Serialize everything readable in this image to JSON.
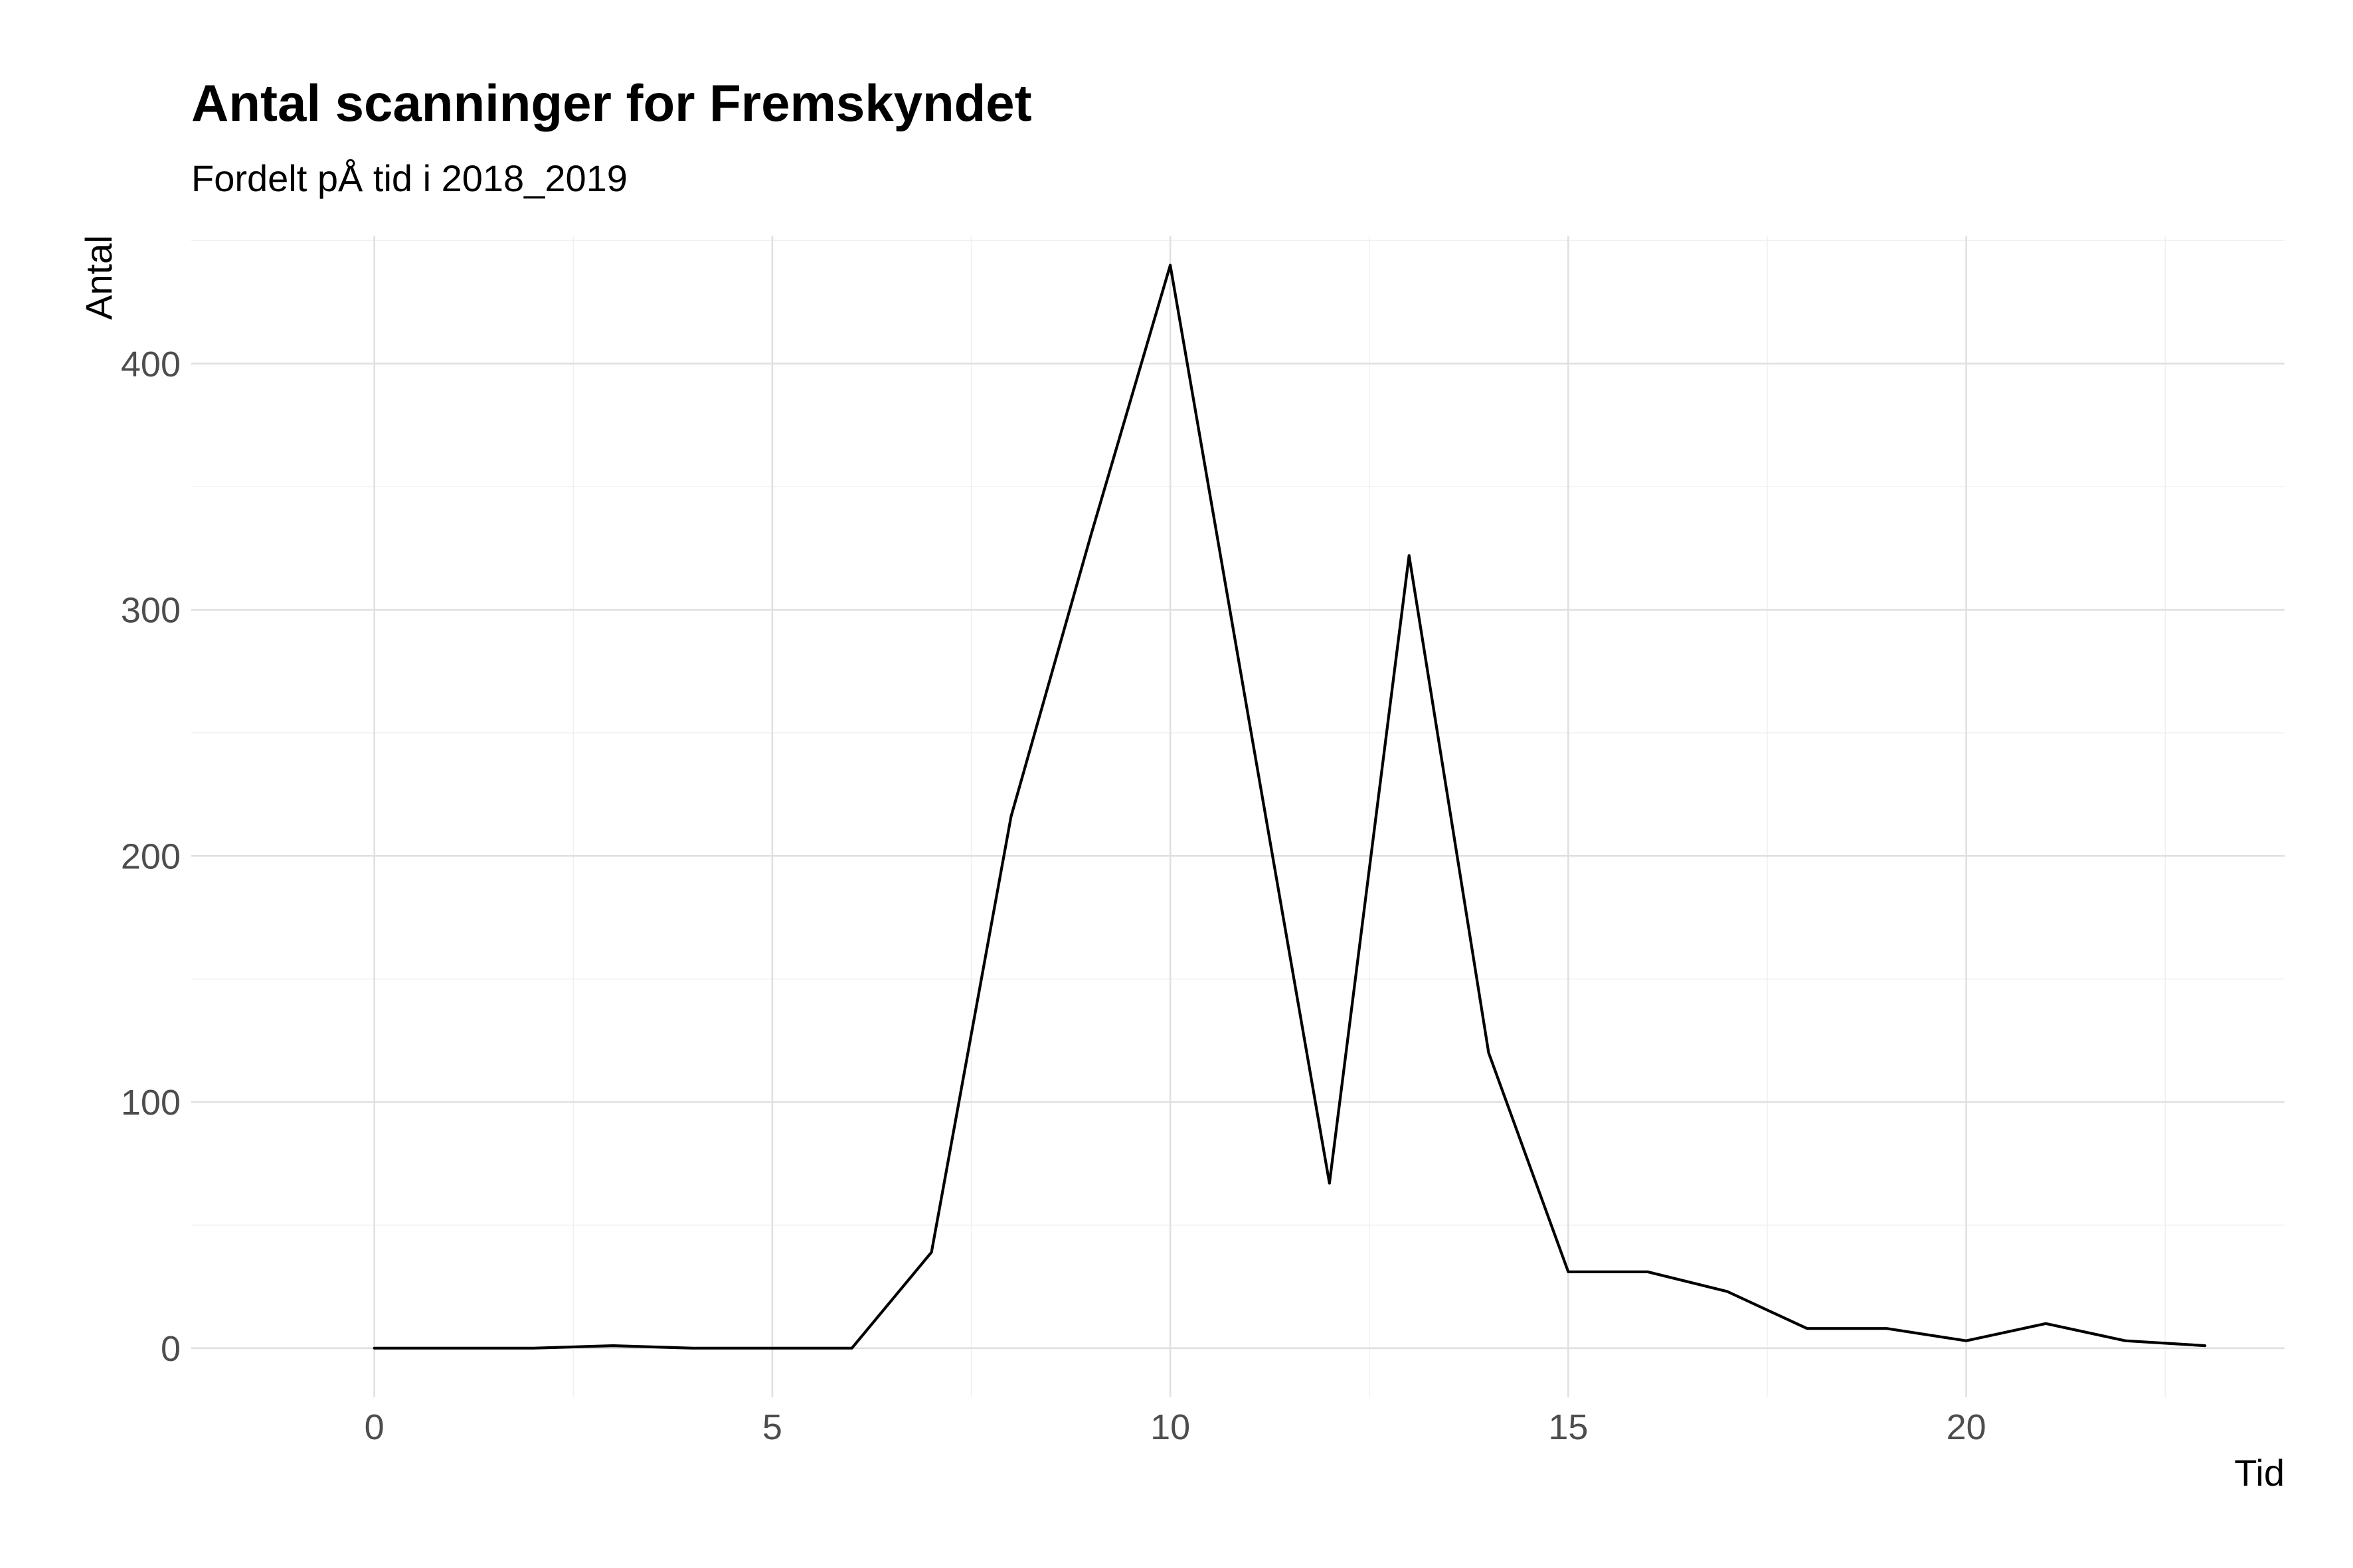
{
  "chart_data": {
    "type": "line",
    "title": "Antal scanninger for Fremskyndet",
    "subtitle": "Fordelt pÅ tid i 2018_2019",
    "xlabel": "Tid",
    "ylabel": "Antal",
    "x": [
      0,
      1,
      2,
      3,
      4,
      5,
      6,
      7,
      8,
      9,
      10,
      11,
      12,
      13,
      14,
      15,
      16,
      17,
      18,
      19,
      20,
      21,
      22,
      23
    ],
    "series": [
      {
        "values": [
          0,
          0,
          0,
          1,
          0,
          0,
          0,
          39,
          216,
          330,
          440,
          253,
          67,
          322,
          120,
          31,
          31,
          23,
          8,
          8,
          3,
          10,
          3,
          1
        ]
      }
    ],
    "xlim": [
      -2.3,
      24
    ],
    "ylim": [
      -20,
      452
    ],
    "x_ticks": [
      0,
      5,
      10,
      15,
      20
    ],
    "x_tick_labels": [
      "0",
      "5",
      "10",
      "15",
      "20"
    ],
    "y_ticks": [
      0,
      100,
      200,
      300,
      400
    ],
    "y_tick_labels": [
      "0",
      "100",
      "200",
      "300",
      "400"
    ],
    "x_minor": [
      2.5,
      7.5,
      12.5,
      17.5,
      22.5
    ],
    "y_minor": [
      50,
      150,
      250,
      350,
      450
    ],
    "grid": true,
    "line_color": "#000000"
  }
}
